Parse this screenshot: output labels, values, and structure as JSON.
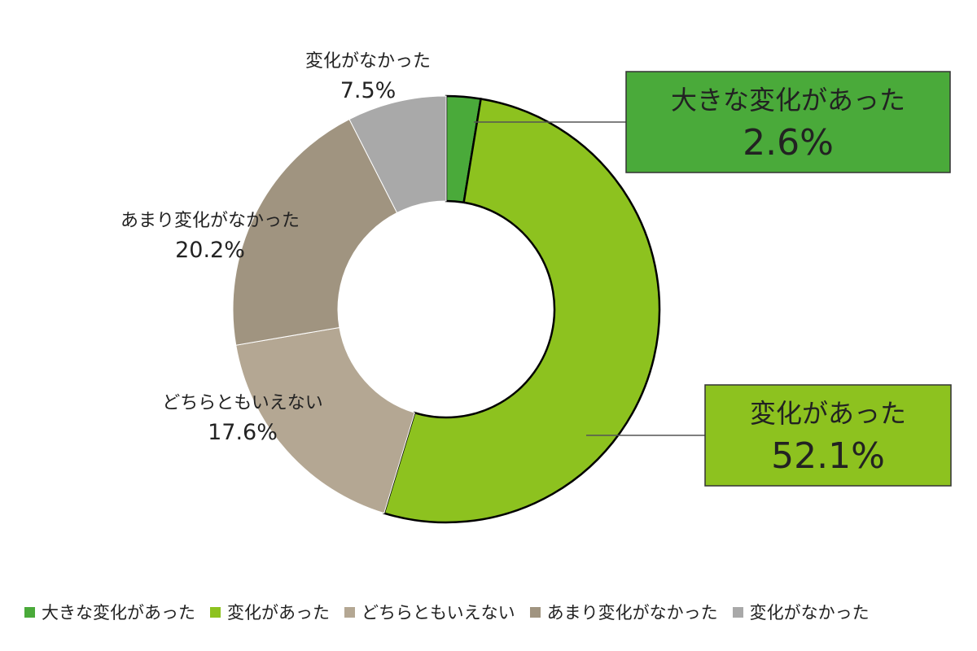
{
  "chart_data": {
    "type": "pie",
    "donut": true,
    "start_angle_deg": 0,
    "direction": "clockwise",
    "slices": [
      {
        "name": "大きな変化があった",
        "value": 2.6,
        "label": "2.6%",
        "color": "#4aaa3a",
        "callout": true
      },
      {
        "name": "変化があった",
        "value": 52.1,
        "label": "52.1%",
        "color": "#8dc21f",
        "callout": true
      },
      {
        "name": "どちらともいえない",
        "value": 17.6,
        "label": "17.6%",
        "color": "#b4a793",
        "callout": false
      },
      {
        "name": "あまり変化がなかった",
        "value": 20.2,
        "label": "20.2%",
        "color": "#a09480",
        "callout": false
      },
      {
        "name": "変化がなかった",
        "value": 7.5,
        "label": "7.5%",
        "color": "#a9a9a9",
        "callout": false
      }
    ],
    "legend_placement": "bottom",
    "highlight_border": "#000000"
  }
}
